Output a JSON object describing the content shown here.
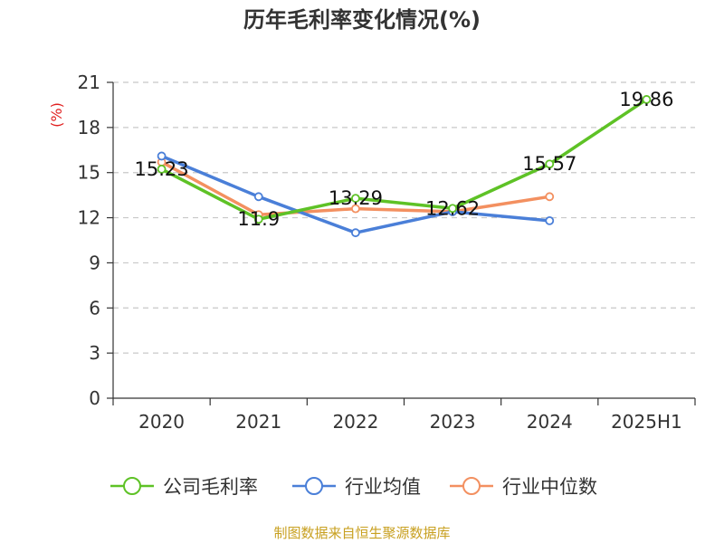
{
  "chart_data": {
    "type": "line",
    "title": "历年毛利率变化情况(%)",
    "ylabel": "(%)",
    "xlabel": "",
    "categories": [
      "2020",
      "2021",
      "2022",
      "2023",
      "2024",
      "2025H1"
    ],
    "yticks": [
      "0",
      "3",
      "6",
      "9",
      "12",
      "15",
      "18",
      "21"
    ],
    "ylim": [
      0,
      21
    ],
    "grid": true,
    "legend_position": "bottom",
    "series": [
      {
        "name": "公司毛利率",
        "color": "#5ec226",
        "values": [
          15.23,
          11.9,
          13.29,
          12.62,
          15.57,
          19.86
        ],
        "labels": [
          "15.23",
          "11.9",
          "13.29",
          "12.62",
          "15.57",
          "19.86"
        ]
      },
      {
        "name": "行业均值",
        "color": "#4a7fd8",
        "values": [
          16.1,
          13.4,
          11.0,
          12.4,
          11.8,
          null
        ]
      },
      {
        "name": "行业中位数",
        "color": "#f39060",
        "values": [
          15.7,
          12.2,
          12.6,
          12.4,
          13.4,
          null
        ]
      }
    ]
  },
  "footer": "制图数据来自恒生聚源数据库"
}
